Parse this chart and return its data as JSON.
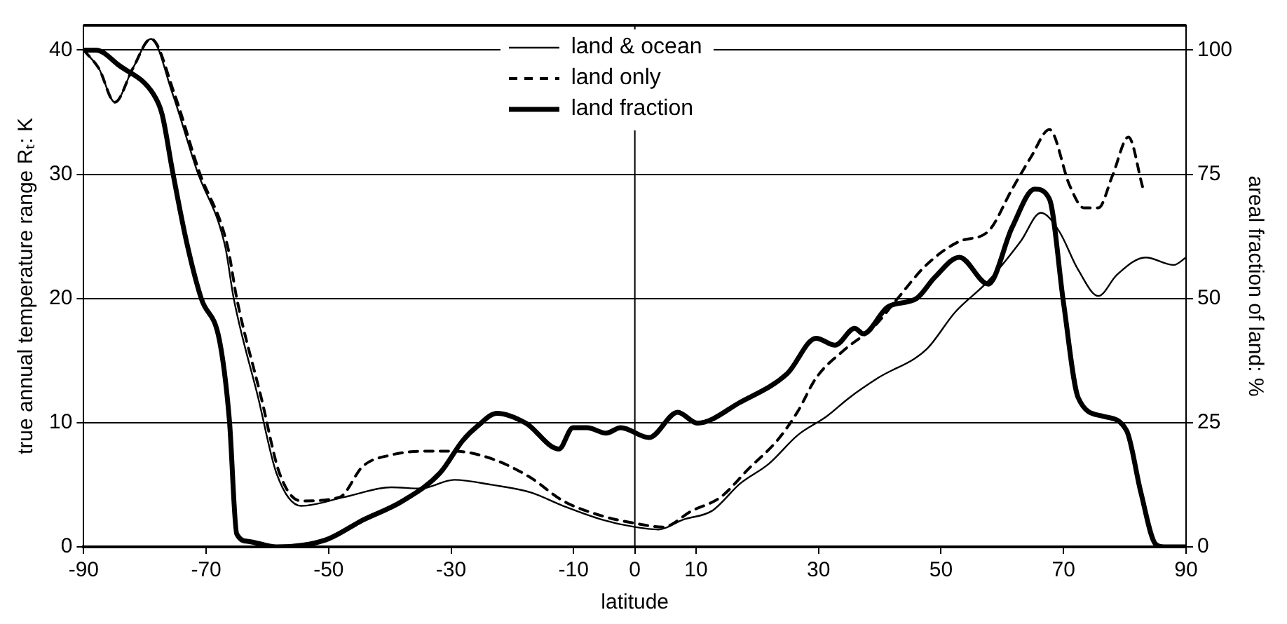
{
  "chart_data": {
    "type": "line",
    "xlabel": "latitude",
    "ylabel": "true annual temperature range Rₜ: K",
    "y2label": "areal fraction of land: %",
    "xlim": [
      -90,
      90
    ],
    "xticks": [
      -90,
      -70,
      -50,
      -30,
      -10,
      0,
      10,
      30,
      50,
      70,
      90
    ],
    "ylim": [
      0,
      42
    ],
    "yticks": [
      0,
      10,
      20,
      30,
      40
    ],
    "y2lim": [
      0,
      105
    ],
    "y2ticks": [
      0,
      25,
      50,
      75,
      100
    ],
    "grid": "y",
    "legend": "top",
    "marker": "none",
    "ref_lines": [
      {
        "axis": "x",
        "value": 0,
        "color": "#000000"
      }
    ],
    "series": [
      {
        "name": "land & ocean",
        "color": "#000000",
        "line_style": "solid",
        "x": [
          -90,
          -87.5,
          -84.9,
          -82,
          -79,
          -75.5,
          -71.5,
          -66.9,
          -65.5,
          -61.5,
          -58.5,
          -54.5,
          -47.5,
          -39.8,
          -35,
          -29.5,
          -23.4,
          -17.1,
          -11.7,
          -5.4,
          0,
          3.9,
          7.9,
          12.6,
          17.2,
          21.9,
          26.6,
          31.3,
          35,
          39.7,
          47.6,
          52.3,
          57.7,
          63,
          66.3,
          69.3,
          72.4,
          75.7,
          78.7,
          83.4,
          88,
          90
        ],
        "values": [
          40,
          38.5,
          35.8,
          38.5,
          40.9,
          36.5,
          30.3,
          24.2,
          20,
          12,
          5.9,
          3.3,
          4,
          4.8,
          4.7,
          5.4,
          5,
          4.4,
          3.3,
          2.2,
          1.6,
          1.4,
          2.2,
          2.9,
          5.1,
          6.7,
          9,
          10.5,
          12,
          13.6,
          15.9,
          18.9,
          21.4,
          24.6,
          26.9,
          25.4,
          22.3,
          20.2,
          21.9,
          23.3,
          22.7,
          23.3
        ]
      },
      {
        "name": "land only",
        "color": "#000000",
        "line_style": "dashed",
        "x": [
          -90,
          -87.5,
          -84.9,
          -82,
          -79,
          -75.2,
          -71.2,
          -66.5,
          -65,
          -61,
          -58,
          -54.5,
          -48.2,
          -44.4,
          -39.8,
          -34.2,
          -29.5,
          -23.4,
          -17.1,
          -11.7,
          -5.4,
          0,
          4.6,
          9.3,
          14,
          18.6,
          23.3,
          26.6,
          29.6,
          34.3,
          39,
          42.9,
          47.6,
          53,
          57.7,
          61.6,
          64.7,
          67.7,
          71,
          73.3,
          75.7,
          78,
          80.6,
          82.9
        ],
        "values": [
          40,
          38.5,
          35.8,
          38.5,
          40.9,
          36.5,
          30.3,
          24.2,
          20,
          12,
          5.9,
          3.7,
          4,
          6.5,
          7.4,
          7.7,
          7.7,
          7.1,
          5.6,
          3.7,
          2.5,
          1.9,
          1.6,
          2.9,
          4,
          6.3,
          8.6,
          10.9,
          13.6,
          15.9,
          17.7,
          20,
          22.7,
          24.6,
          25.4,
          28.8,
          31.4,
          33.6,
          29.1,
          27.3,
          27.3,
          29.9,
          33,
          29
        ]
      },
      {
        "name": "land fraction",
        "color": "#000000",
        "line_style": "solid",
        "axis": "y2",
        "x": [
          -90,
          -88,
          -84.2,
          -78.6,
          -77.2,
          -75.5,
          -73.2,
          -70.8,
          -67.8,
          -66.2,
          -65,
          -63.1,
          -58.5,
          -50.5,
          -44.4,
          -38.1,
          -31.8,
          -28.1,
          -25.7,
          -22.5,
          -17.8,
          -12.4,
          -10.1,
          -7.8,
          -4.7,
          -2.3,
          2.3,
          7,
          10.2,
          17.2,
          24.9,
          29.6,
          32.7,
          35.9,
          37.3,
          41.3,
          46,
          49,
          53,
          57.7,
          61.6,
          65.3,
          67.7,
          70,
          72.4,
          76.4,
          80.3,
          82.6,
          85,
          86.4,
          90
        ],
        "values": [
          100,
          100,
          96.9,
          91.1,
          87.1,
          75.7,
          61.4,
          50,
          41.4,
          25.4,
          2.6,
          1.1,
          0,
          1.4,
          5.4,
          9.1,
          14.9,
          21.4,
          24.3,
          26.9,
          24.9,
          19.7,
          24,
          24,
          22.9,
          24,
          22,
          27.1,
          24.9,
          29.1,
          34.9,
          42,
          40.6,
          44,
          42.9,
          48.3,
          50,
          54.3,
          58.3,
          52.9,
          64.3,
          72,
          70,
          49.1,
          30,
          26.3,
          23.4,
          11.1,
          0.6,
          0,
          0
        ]
      }
    ]
  }
}
